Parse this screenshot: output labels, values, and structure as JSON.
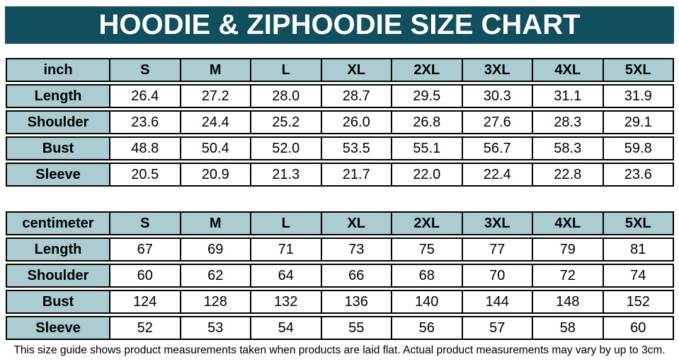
{
  "title": "HOODIE & ZIPHOODIE SIZE CHART",
  "colors": {
    "header_bar_bg": "#124f5e",
    "header_bar_text": "#ffffff",
    "table_head_cell_bg": "#abccd1",
    "table_border": "#000000",
    "data_cell_bg": "#ffffff"
  },
  "tables": [
    {
      "unit": "inch",
      "sizes": [
        "S",
        "M",
        "L",
        "XL",
        "2XL",
        "3XL",
        "4XL",
        "5XL"
      ],
      "rows": [
        {
          "label": "Length",
          "values": [
            "26.4",
            "27.2",
            "28.0",
            "28.7",
            "29.5",
            "30.3",
            "31.1",
            "31.9"
          ]
        },
        {
          "label": "Shoulder",
          "values": [
            "23.6",
            "24.4",
            "25.2",
            "26.0",
            "26.8",
            "27.6",
            "28.3",
            "29.1"
          ]
        },
        {
          "label": "Bust",
          "values": [
            "48.8",
            "50.4",
            "52.0",
            "53.5",
            "55.1",
            "56.7",
            "58.3",
            "59.8"
          ]
        },
        {
          "label": "Sleeve",
          "values": [
            "20.5",
            "20.9",
            "21.3",
            "21.7",
            "22.0",
            "22.4",
            "22.8",
            "23.6"
          ]
        }
      ]
    },
    {
      "unit": "centimeter",
      "sizes": [
        "S",
        "M",
        "L",
        "XL",
        "2XL",
        "3XL",
        "4XL",
        "5XL"
      ],
      "rows": [
        {
          "label": "Length",
          "values": [
            "67",
            "69",
            "71",
            "73",
            "75",
            "77",
            "79",
            "81"
          ]
        },
        {
          "label": "Shoulder",
          "values": [
            "60",
            "62",
            "64",
            "66",
            "68",
            "70",
            "72",
            "74"
          ]
        },
        {
          "label": "Bust",
          "values": [
            "124",
            "128",
            "132",
            "136",
            "140",
            "144",
            "148",
            "152"
          ]
        },
        {
          "label": "Sleeve",
          "values": [
            "52",
            "53",
            "54",
            "55",
            "56",
            "57",
            "58",
            "60"
          ]
        }
      ]
    }
  ],
  "footer_note": "This size guide shows product measurements taken when products are laid flat. Actual product measurements may vary by up to 3cm."
}
